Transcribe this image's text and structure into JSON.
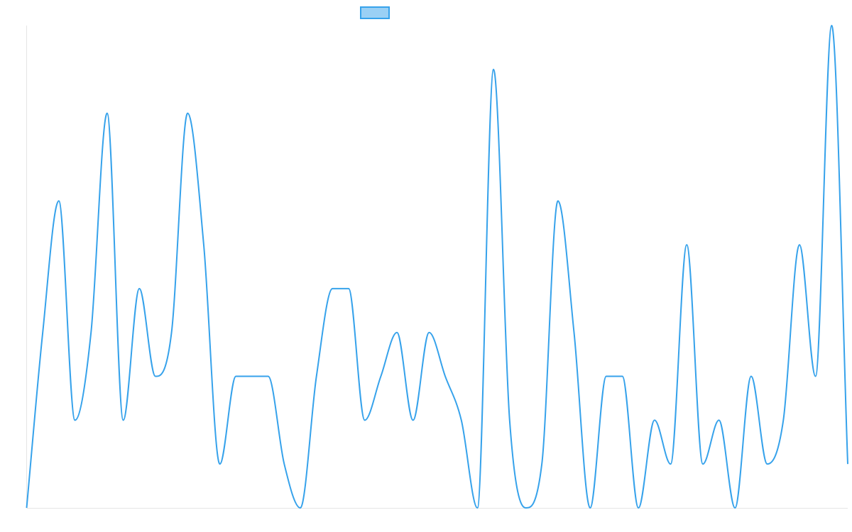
{
  "chart_data": {
    "type": "line",
    "title": "",
    "xlabel": "",
    "ylabel": "",
    "grid": false,
    "legend": "top",
    "smooth": true,
    "ylim": [
      0,
      11
    ],
    "x": [
      "1",
      "2",
      "3",
      "4",
      "5",
      "6",
      "7",
      "8",
      "9",
      "10",
      "11",
      "12",
      "13",
      "14",
      "15",
      "16",
      "17",
      "18",
      "19",
      "20",
      "21",
      "22",
      "23",
      "24",
      "25",
      "26",
      "27",
      "28",
      "29",
      "30",
      "31",
      "32",
      "33",
      "34",
      "35",
      "36",
      "37",
      "38",
      "39",
      "40",
      "41",
      "42",
      "43",
      "44",
      "45",
      "46",
      "47",
      "48",
      "49",
      "50",
      "51",
      "52"
    ],
    "series": [
      {
        "name": "",
        "color": "#36a2eb",
        "values": [
          0,
          4,
          7,
          2,
          4,
          9,
          2,
          5,
          3,
          4,
          9,
          6,
          1,
          3,
          3,
          3,
          1,
          0,
          3,
          5,
          5,
          2,
          3,
          4,
          2,
          4,
          3,
          2,
          0,
          10,
          2,
          0,
          1,
          7,
          4,
          0,
          3,
          3,
          0,
          2,
          1,
          6,
          1,
          2,
          0,
          3,
          1,
          2,
          6,
          3,
          11,
          1
        ]
      }
    ]
  }
}
